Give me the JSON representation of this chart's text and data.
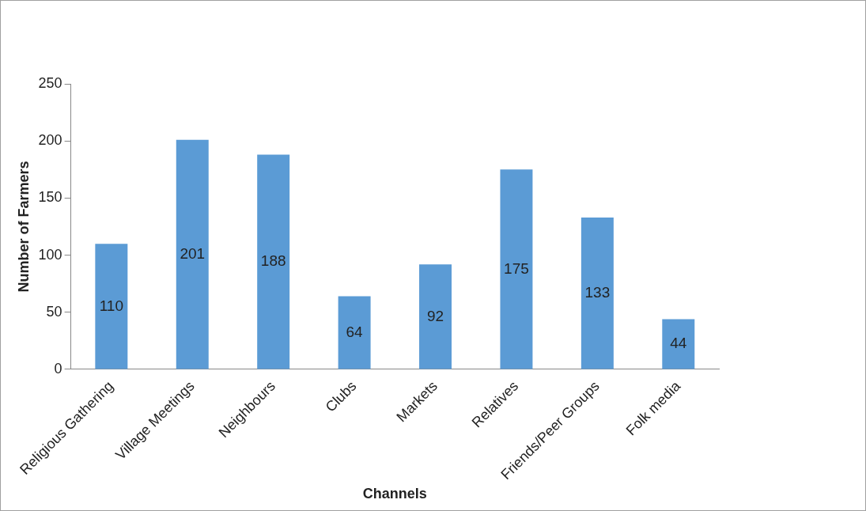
{
  "chart_data": {
    "type": "bar",
    "xlabel": "Channels",
    "ylabel": "Number of Farmers",
    "categories": [
      "Religious Gathering",
      "Village Meetings",
      "Neighbours",
      "Clubs",
      "Markets",
      "Relatives",
      "Friends/Peer Groups",
      "Folk media"
    ],
    "values": [
      110,
      201,
      188,
      64,
      92,
      175,
      133,
      44
    ],
    "color": "#5b9bd5",
    "ylim": [
      0,
      250
    ],
    "yticks": [
      0,
      50,
      100,
      150,
      200,
      250
    ],
    "grid": false,
    "legend": false,
    "data_labels": true
  }
}
